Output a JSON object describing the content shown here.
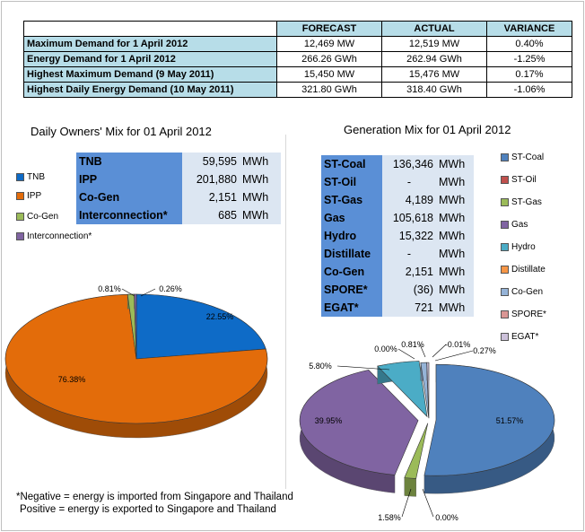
{
  "demand_table": {
    "headers": [
      "",
      "FORECAST",
      "ACTUAL",
      "VARIANCE"
    ],
    "rows": [
      {
        "label": "Maximum Demand for 1 April 2012",
        "forecast": "12,469  MW",
        "actual": "12,519  MW",
        "variance": "0.40%"
      },
      {
        "label": "Energy Demand for 1 April 2012",
        "forecast": "266.26  GWh",
        "actual": "262.94  GWh",
        "variance": "-1.25%"
      },
      {
        "label": "Highest Maximum Demand (9 May 2011)",
        "forecast": "15,450  MW",
        "actual": "15,476  MW",
        "variance": "0.17%"
      },
      {
        "label": "Highest Daily Energy Demand (10 May 2011)",
        "forecast": "321.80  GWh",
        "actual": "318.40  GWh",
        "variance": "-1.06%"
      }
    ]
  },
  "owners_mix": {
    "title": "Daily Owners' Mix for 01 April 2012",
    "rows": [
      {
        "name": "TNB",
        "value": "59,595",
        "unit": "MWh"
      },
      {
        "name": "IPP",
        "value": "201,880",
        "unit": "MWh"
      },
      {
        "name": "Co-Gen",
        "value": "2,151",
        "unit": "MWh"
      },
      {
        "name": "Interconnection*",
        "value": "685",
        "unit": "MWh"
      }
    ],
    "legend": [
      "TNB",
      "IPP",
      "Co-Gen",
      "Interconnection*"
    ]
  },
  "generation_mix": {
    "title": "Generation Mix for 01 April 2012",
    "rows": [
      {
        "name": "ST-Coal",
        "value": "136,346",
        "unit": "MWh"
      },
      {
        "name": "ST-Oil",
        "value": "-",
        "unit": "MWh"
      },
      {
        "name": "ST-Gas",
        "value": "4,189",
        "unit": "MWh"
      },
      {
        "name": "Gas",
        "value": "105,618",
        "unit": "MWh"
      },
      {
        "name": "Hydro",
        "value": "15,322",
        "unit": "MWh"
      },
      {
        "name": "Distillate",
        "value": "-",
        "unit": "MWh"
      },
      {
        "name": "Co-Gen",
        "value": "2,151",
        "unit": "MWh"
      },
      {
        "name": "SPORE*",
        "value": "(36)",
        "unit": "MWh"
      },
      {
        "name": "EGAT*",
        "value": "721",
        "unit": "MWh"
      }
    ],
    "legend": [
      "ST-Coal",
      "ST-Oil",
      "ST-Gas",
      "Gas",
      "Hydro",
      "Distillate",
      "Co-Gen",
      "SPORE*",
      "EGAT*"
    ]
  },
  "footnote": {
    "line1": "*Negative = energy is imported from Singapore and Thailand",
    "line2": "Positive = energy is exported to Singapore and Thailand"
  },
  "chart_data": [
    {
      "type": "pie",
      "title": "Daily Owners' Mix for 01 April 2012",
      "categories": [
        "TNB",
        "IPP",
        "Co-Gen",
        "Interconnection*"
      ],
      "values": [
        22.55,
        76.38,
        0.81,
        0.26
      ],
      "labels": [
        "22.55%",
        "76.38%",
        "0.81%",
        "0.26%"
      ],
      "colors": [
        "#0e6bc7",
        "#e36c0a",
        "#9bbb59",
        "#8064a2"
      ]
    },
    {
      "type": "pie",
      "title": "Generation Mix for 01 April 2012",
      "categories": [
        "ST-Coal",
        "ST-Oil",
        "ST-Gas",
        "Gas",
        "Hydro",
        "Distillate",
        "Co-Gen",
        "SPORE*",
        "EGAT*"
      ],
      "values": [
        51.57,
        0.0,
        1.58,
        39.95,
        5.8,
        0.0,
        0.81,
        -0.01,
        0.27
      ],
      "labels": [
        "51.57%",
        "0.00%",
        "1.58%",
        "39.95%",
        "5.80%",
        "0.00%",
        "0.81%",
        "-0.01%",
        "0.27%"
      ],
      "colors": [
        "#4f81bd",
        "#c0504d",
        "#9bbb59",
        "#8064a2",
        "#4bacc6",
        "#f79646",
        "#95b3d7",
        "#d99694",
        "#ccc1da"
      ]
    }
  ]
}
